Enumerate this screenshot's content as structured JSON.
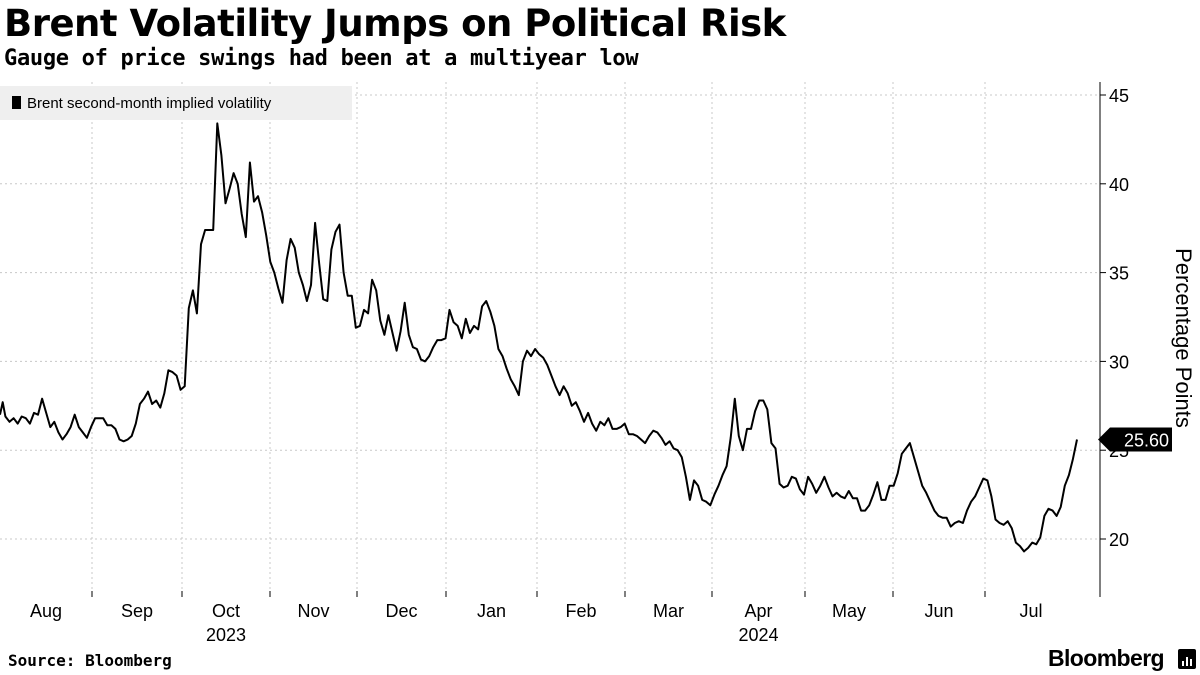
{
  "header": {
    "title": "Brent Volatility Jumps on Political Risk",
    "subtitle": "Gauge of price swings had been at a multiyear low"
  },
  "footer": {
    "source": "Source: Bloomberg",
    "brand": "Bloomberg"
  },
  "chart_data": {
    "type": "line",
    "title": "Brent Volatility Jumps on Political Risk",
    "subtitle": "Gauge of price swings had been at a multiyear low",
    "xlabel": "",
    "ylabel": "Percentage Points",
    "ylim": [
      17,
      46
    ],
    "yticks": [
      20,
      25,
      30,
      35,
      40,
      45
    ],
    "ytick_labels": [
      "20",
      "25",
      "30",
      "35",
      "40",
      "45"
    ],
    "months": [
      "Aug",
      "Sep",
      "Oct",
      "Nov",
      "Dec",
      "Jan",
      "Feb",
      "Mar",
      "Apr",
      "May",
      "Jun",
      "Jul"
    ],
    "years": [
      {
        "label": "2023",
        "under": "Oct"
      },
      {
        "label": "2024",
        "under": "Apr"
      }
    ],
    "legend": "Brent second-month implied volatility",
    "legend_position": "top-left",
    "last_value_label": "25.60",
    "grid": true,
    "series": [
      {
        "name": "Brent second-month implied volatility",
        "points": [
          [
            0,
            27.0
          ],
          [
            2,
            27.7
          ],
          [
            4,
            26.9
          ],
          [
            7,
            26.6
          ],
          [
            10,
            26.8
          ],
          [
            13,
            26.5
          ],
          [
            16,
            26.9
          ],
          [
            19,
            26.8
          ],
          [
            22,
            26.5
          ],
          [
            25,
            27.1
          ],
          [
            28,
            27.0
          ],
          [
            31,
            27.9
          ],
          [
            34,
            27.1
          ],
          [
            37,
            26.3
          ],
          [
            40,
            26.6
          ],
          [
            43,
            26.0
          ],
          [
            46,
            25.6
          ],
          [
            49,
            25.9
          ],
          [
            52,
            26.3
          ],
          [
            55,
            27.0
          ],
          [
            58,
            26.3
          ],
          [
            61,
            26.0
          ],
          [
            64,
            25.7
          ],
          [
            67,
            26.3
          ],
          [
            70,
            26.8
          ],
          [
            73,
            26.8
          ],
          [
            76,
            26.8
          ],
          [
            79,
            26.4
          ],
          [
            82,
            26.4
          ],
          [
            85,
            26.2
          ],
          [
            88,
            25.6
          ],
          [
            91,
            25.5
          ],
          [
            94,
            25.6
          ],
          [
            97,
            25.8
          ],
          [
            100,
            26.5
          ],
          [
            103,
            27.6
          ],
          [
            106,
            27.9
          ],
          [
            109,
            28.3
          ],
          [
            112,
            27.6
          ],
          [
            115,
            27.8
          ],
          [
            118,
            27.4
          ],
          [
            121,
            28.2
          ],
          [
            124,
            29.5
          ],
          [
            127,
            29.4
          ],
          [
            130,
            29.2
          ],
          [
            133,
            28.4
          ],
          [
            136,
            28.6
          ],
          [
            139,
            33.0
          ],
          [
            142,
            34.0
          ],
          [
            145,
            32.7
          ],
          [
            148,
            36.6
          ],
          [
            151,
            37.4
          ],
          [
            154,
            37.4
          ],
          [
            157,
            37.4
          ],
          [
            160,
            43.4
          ],
          [
            163,
            41.6
          ],
          [
            166,
            38.9
          ],
          [
            169,
            39.7
          ],
          [
            172,
            40.6
          ],
          [
            175,
            40.0
          ],
          [
            178,
            38.3
          ],
          [
            181,
            37.0
          ],
          [
            184,
            41.2
          ],
          [
            187,
            39.0
          ],
          [
            190,
            39.3
          ],
          [
            193,
            38.4
          ],
          [
            196,
            37.1
          ],
          [
            199,
            35.6
          ],
          [
            202,
            35.0
          ],
          [
            205,
            34.1
          ],
          [
            208,
            33.3
          ],
          [
            211,
            35.7
          ],
          [
            214,
            36.9
          ],
          [
            217,
            36.4
          ],
          [
            220,
            35.0
          ],
          [
            223,
            34.3
          ],
          [
            226,
            33.4
          ],
          [
            229,
            34.3
          ],
          [
            232,
            37.8
          ],
          [
            235,
            35.5
          ],
          [
            238,
            33.5
          ],
          [
            241,
            33.4
          ],
          [
            244,
            36.3
          ],
          [
            247,
            37.3
          ],
          [
            250,
            37.7
          ],
          [
            253,
            35.0
          ],
          [
            256,
            33.7
          ],
          [
            259,
            33.7
          ],
          [
            262,
            31.9
          ],
          [
            265,
            32.0
          ],
          [
            268,
            32.9
          ],
          [
            271,
            32.7
          ],
          [
            274,
            34.6
          ],
          [
            277,
            34.0
          ],
          [
            280,
            32.3
          ],
          [
            283,
            31.5
          ],
          [
            286,
            32.6
          ],
          [
            289,
            31.6
          ],
          [
            292,
            30.6
          ],
          [
            295,
            31.7
          ],
          [
            298,
            33.3
          ],
          [
            301,
            31.5
          ],
          [
            304,
            30.8
          ],
          [
            307,
            30.7
          ],
          [
            310,
            30.1
          ],
          [
            313,
            30.0
          ],
          [
            316,
            30.3
          ],
          [
            319,
            30.8
          ],
          [
            322,
            31.2
          ],
          [
            325,
            31.2
          ],
          [
            328,
            31.3
          ],
          [
            331,
            32.9
          ],
          [
            334,
            32.2
          ],
          [
            337,
            32.0
          ],
          [
            340,
            31.3
          ],
          [
            343,
            32.4
          ],
          [
            346,
            31.6
          ],
          [
            349,
            32.0
          ],
          [
            352,
            31.8
          ],
          [
            355,
            33.1
          ],
          [
            358,
            33.4
          ],
          [
            361,
            32.8
          ],
          [
            364,
            32.0
          ],
          [
            367,
            30.7
          ],
          [
            370,
            30.3
          ],
          [
            373,
            29.6
          ],
          [
            376,
            29.0
          ],
          [
            379,
            28.6
          ],
          [
            382,
            28.1
          ],
          [
            385,
            30.0
          ],
          [
            388,
            30.6
          ],
          [
            391,
            30.3
          ],
          [
            394,
            30.7
          ],
          [
            397,
            30.4
          ],
          [
            400,
            30.2
          ],
          [
            403,
            29.8
          ],
          [
            406,
            29.2
          ],
          [
            409,
            28.6
          ],
          [
            412,
            28.1
          ],
          [
            415,
            28.6
          ],
          [
            418,
            28.2
          ],
          [
            421,
            27.5
          ],
          [
            424,
            27.7
          ],
          [
            427,
            27.2
          ],
          [
            430,
            26.6
          ],
          [
            433,
            27.1
          ],
          [
            436,
            26.5
          ],
          [
            439,
            26.1
          ],
          [
            442,
            26.6
          ],
          [
            445,
            26.4
          ],
          [
            448,
            26.8
          ],
          [
            451,
            26.2
          ],
          [
            454,
            26.2
          ],
          [
            457,
            26.3
          ],
          [
            460,
            26.5
          ],
          [
            463,
            25.9
          ],
          [
            466,
            25.9
          ],
          [
            469,
            25.8
          ],
          [
            472,
            25.6
          ],
          [
            475,
            25.4
          ],
          [
            478,
            25.8
          ],
          [
            481,
            26.1
          ],
          [
            484,
            26.0
          ],
          [
            487,
            25.7
          ],
          [
            490,
            25.3
          ],
          [
            493,
            25.5
          ],
          [
            496,
            25.1
          ],
          [
            499,
            25.0
          ],
          [
            502,
            24.6
          ],
          [
            505,
            23.5
          ],
          [
            508,
            22.2
          ],
          [
            511,
            23.3
          ],
          [
            514,
            23.0
          ],
          [
            517,
            22.2
          ],
          [
            520,
            22.1
          ],
          [
            523,
            21.9
          ],
          [
            526,
            22.5
          ],
          [
            529,
            23.0
          ],
          [
            532,
            23.6
          ],
          [
            535,
            24.1
          ],
          [
            538,
            25.7
          ],
          [
            541,
            27.9
          ],
          [
            544,
            25.8
          ],
          [
            547,
            25.0
          ],
          [
            550,
            26.2
          ],
          [
            553,
            26.2
          ],
          [
            556,
            27.2
          ],
          [
            559,
            27.8
          ],
          [
            562,
            27.8
          ],
          [
            565,
            27.3
          ],
          [
            568,
            25.4
          ],
          [
            571,
            25.1
          ],
          [
            574,
            23.1
          ],
          [
            577,
            22.9
          ],
          [
            580,
            23.0
          ],
          [
            583,
            23.5
          ],
          [
            586,
            23.4
          ],
          [
            589,
            22.8
          ],
          [
            592,
            22.5
          ],
          [
            595,
            23.5
          ],
          [
            598,
            23.1
          ],
          [
            601,
            22.6
          ],
          [
            604,
            23.0
          ],
          [
            607,
            23.5
          ],
          [
            610,
            22.9
          ],
          [
            613,
            22.4
          ],
          [
            616,
            22.6
          ],
          [
            619,
            22.4
          ],
          [
            622,
            22.3
          ],
          [
            625,
            22.7
          ],
          [
            628,
            22.3
          ],
          [
            631,
            22.3
          ],
          [
            634,
            21.6
          ],
          [
            637,
            21.6
          ],
          [
            640,
            21.9
          ],
          [
            643,
            22.5
          ],
          [
            646,
            23.2
          ],
          [
            649,
            22.2
          ],
          [
            652,
            22.2
          ],
          [
            655,
            23.0
          ],
          [
            658,
            23.0
          ],
          [
            661,
            23.7
          ],
          [
            664,
            24.8
          ],
          [
            667,
            25.1
          ],
          [
            670,
            25.4
          ],
          [
            673,
            24.6
          ],
          [
            676,
            23.8
          ],
          [
            679,
            23.0
          ],
          [
            682,
            22.6
          ],
          [
            685,
            22.1
          ],
          [
            688,
            21.6
          ],
          [
            691,
            21.3
          ],
          [
            694,
            21.2
          ],
          [
            697,
            21.2
          ],
          [
            700,
            20.7
          ],
          [
            703,
            20.9
          ],
          [
            706,
            21.0
          ],
          [
            709,
            20.9
          ],
          [
            712,
            21.6
          ],
          [
            715,
            22.1
          ],
          [
            718,
            22.4
          ],
          [
            721,
            22.9
          ],
          [
            724,
            23.4
          ],
          [
            727,
            23.3
          ],
          [
            730,
            22.4
          ],
          [
            733,
            21.1
          ],
          [
            736,
            20.9
          ],
          [
            739,
            20.8
          ],
          [
            742,
            21.0
          ],
          [
            745,
            20.6
          ],
          [
            748,
            19.8
          ],
          [
            751,
            19.6
          ],
          [
            754,
            19.3
          ],
          [
            757,
            19.5
          ],
          [
            760,
            19.8
          ],
          [
            763,
            19.7
          ],
          [
            766,
            20.1
          ],
          [
            769,
            21.3
          ],
          [
            772,
            21.7
          ],
          [
            775,
            21.6
          ],
          [
            778,
            21.3
          ],
          [
            781,
            21.8
          ],
          [
            784,
            23.0
          ],
          [
            787,
            23.6
          ],
          [
            790,
            24.5
          ],
          [
            793,
            25.6
          ]
        ]
      }
    ]
  }
}
